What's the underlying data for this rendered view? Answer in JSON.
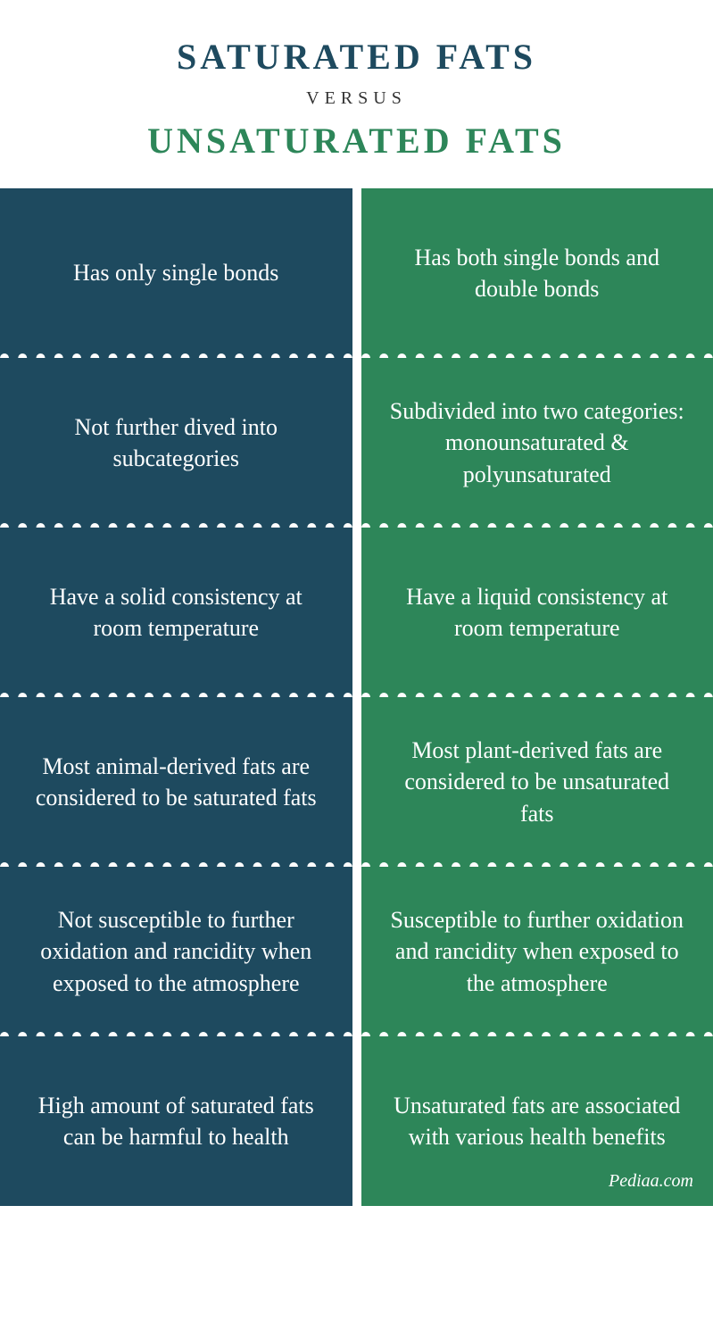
{
  "header": {
    "title1": "SATURATED  FATS",
    "title1_color": "#1e4a5f",
    "title1_fontsize": 40,
    "versus": "VERSUS",
    "versus_color": "#333333",
    "versus_fontsize": 20,
    "title2": "UNSATURATED FATS",
    "title2_color": "#2d8659",
    "title2_fontsize": 40
  },
  "comparison": {
    "left_bg": "#1e4a5f",
    "right_bg": "#2d8659",
    "rows": [
      {
        "left": "Has only single bonds",
        "right": "Has both single bonds and double bonds"
      },
      {
        "left": "Not further dived into subcategories",
        "right": "Subdivided into two categories: monounsaturated & polyunsaturated"
      },
      {
        "left": "Have a solid consistency at room temperature",
        "right": "Have a liquid consistency at room temperature"
      },
      {
        "left": "Most animal-derived fats are considered to be saturated fats",
        "right": "Most plant-derived fats are considered to be unsaturated fats"
      },
      {
        "left": "Not susceptible to further oxidation and rancidity when exposed to the atmosphere",
        "right": "Susceptible to further oxidation and rancidity when exposed to the atmosphere"
      },
      {
        "left": "High amount of saturated fats can be harmful to health",
        "right": "Unsaturated fats are associated with various health benefits"
      }
    ]
  },
  "attribution": "Pediaa.com"
}
